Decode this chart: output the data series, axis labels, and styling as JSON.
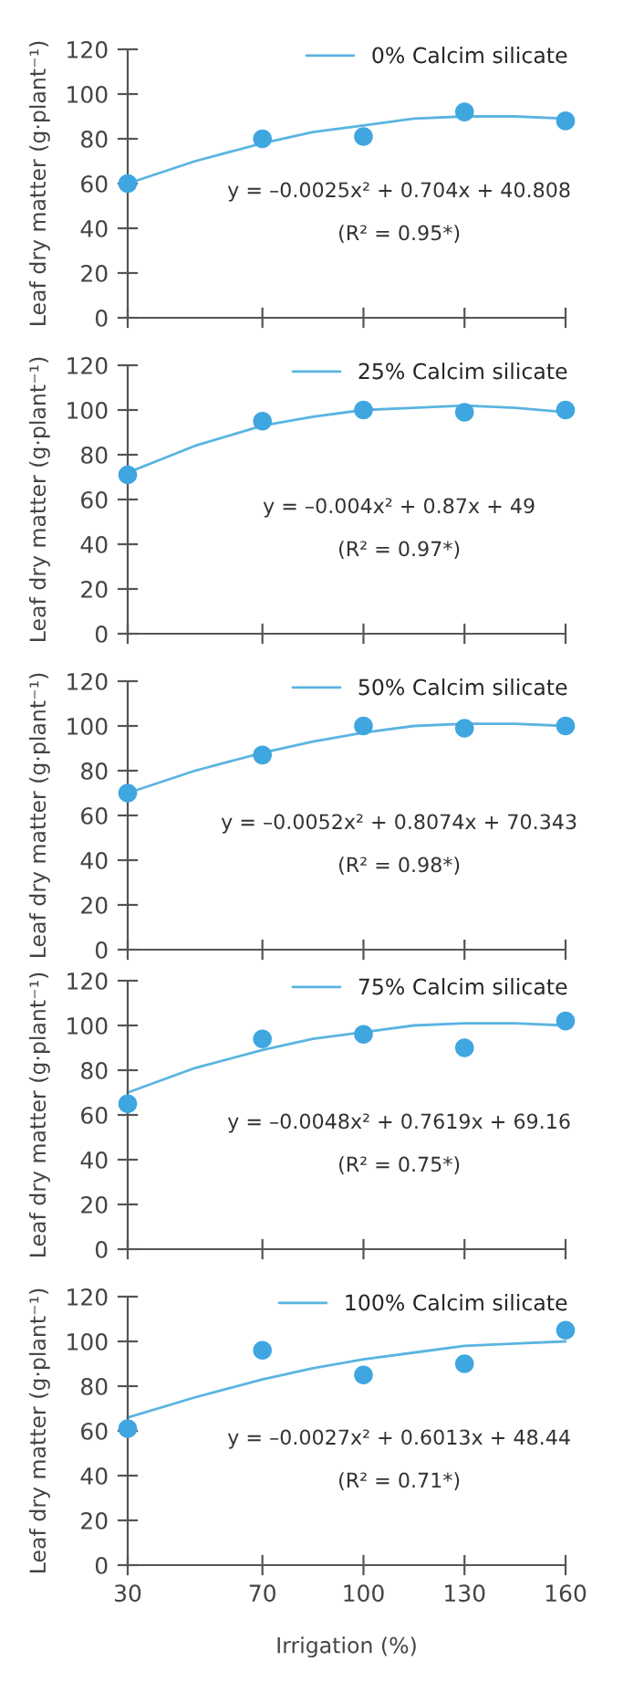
{
  "chart_data": [
    {
      "type": "scatter",
      "x": [
        30,
        70,
        100,
        130,
        160
      ],
      "xlim": [
        30,
        160
      ],
      "xticks": [
        30,
        70,
        100,
        130,
        160
      ],
      "ylim": [
        0,
        120
      ],
      "yticks": [
        0,
        20,
        40,
        60,
        80,
        100,
        120
      ],
      "ylabel": "Leaf dry matter (g·plant⁻¹)",
      "tick_labels": "y",
      "grid": false,
      "legend": "top right",
      "series": [
        {
          "color": "#3fa6e0",
          "marker": "circle",
          "values": [
            60,
            80,
            81,
            92,
            88
          ]
        },
        {
          "type": "line",
          "name": "0% Calcim silicate",
          "color": "#5ab4e0",
          "x": [
            30,
            50,
            70,
            85,
            100,
            115,
            130,
            145,
            160
          ],
          "values": [
            60,
            70,
            78,
            83,
            86,
            89,
            90,
            90,
            89
          ]
        }
      ],
      "annotations": [
        "y = –0.0025x² + 0.704x + 40.808",
        "(R² = 0.95*)"
      ]
    },
    {
      "type": "scatter",
      "x": [
        30,
        70,
        100,
        130,
        160
      ],
      "xlim": [
        30,
        160
      ],
      "xticks": [
        30,
        70,
        100,
        130,
        160
      ],
      "ylim": [
        0,
        120
      ],
      "yticks": [
        0,
        20,
        40,
        60,
        80,
        100,
        120
      ],
      "ylabel": "Leaf dry matter (g·plant⁻¹)",
      "tick_labels": "y",
      "grid": false,
      "legend": "top right",
      "series": [
        {
          "color": "#3fa6e0",
          "marker": "circle",
          "values": [
            71,
            95,
            100,
            99,
            100
          ]
        },
        {
          "type": "line",
          "name": "25% Calcim silicate",
          "color": "#5ab4e0",
          "x": [
            30,
            50,
            70,
            85,
            100,
            115,
            130,
            145,
            160
          ],
          "values": [
            72,
            84,
            93,
            97,
            100,
            101,
            102,
            101,
            99
          ]
        }
      ],
      "annotations": [
        "y = –0.004x² + 0.87x + 49",
        "(R² = 0.97*)"
      ]
    },
    {
      "type": "scatter",
      "x": [
        30,
        70,
        100,
        130,
        160
      ],
      "xlim": [
        30,
        160
      ],
      "xticks": [
        30,
        70,
        100,
        130,
        160
      ],
      "ylim": [
        0,
        120
      ],
      "yticks": [
        0,
        20,
        40,
        60,
        80,
        100,
        120
      ],
      "ylabel": "Leaf dry matter (g·plant⁻¹)",
      "tick_labels": "y",
      "grid": false,
      "legend": "top right",
      "series": [
        {
          "color": "#3fa6e0",
          "marker": "circle",
          "values": [
            70,
            87,
            100,
            99,
            100
          ]
        },
        {
          "type": "line",
          "name": "50% Calcim silicate",
          "color": "#5ab4e0",
          "x": [
            30,
            50,
            70,
            85,
            100,
            115,
            130,
            145,
            160
          ],
          "values": [
            70,
            80,
            88,
            93,
            97,
            100,
            101,
            101,
            100
          ]
        }
      ],
      "annotations": [
        "y = –0.0052x² + 0.8074x + 70.343",
        "(R² = 0.98*)"
      ]
    },
    {
      "type": "scatter",
      "x": [
        30,
        70,
        100,
        130,
        160
      ],
      "xlim": [
        30,
        160
      ],
      "xticks": [
        30,
        70,
        100,
        130,
        160
      ],
      "ylim": [
        0,
        120
      ],
      "yticks": [
        0,
        20,
        40,
        60,
        80,
        100,
        120
      ],
      "ylabel": "Leaf dry matter (g·plant⁻¹)",
      "tick_labels": "y",
      "grid": false,
      "legend": "top right",
      "series": [
        {
          "color": "#3fa6e0",
          "marker": "circle",
          "values": [
            65,
            94,
            96,
            90,
            102
          ]
        },
        {
          "type": "line",
          "name": "75% Calcim silicate",
          "color": "#5ab4e0",
          "x": [
            30,
            50,
            70,
            85,
            100,
            115,
            130,
            145,
            160
          ],
          "values": [
            70,
            81,
            89,
            94,
            97,
            100,
            101,
            101,
            100
          ]
        }
      ],
      "annotations": [
        "y = –0.0048x² + 0.7619x + 69.16",
        "(R² = 0.75*)"
      ]
    },
    {
      "type": "scatter",
      "x": [
        30,
        70,
        100,
        130,
        160
      ],
      "xlim": [
        30,
        160
      ],
      "xticks": [
        30,
        70,
        100,
        130,
        160
      ],
      "ylim": [
        0,
        120
      ],
      "yticks": [
        0,
        20,
        40,
        60,
        80,
        100,
        120
      ],
      "ylabel": "Leaf dry matter (g·plant⁻¹)",
      "xlabel": "Irrigation (%)",
      "grid": false,
      "legend": "top right",
      "series": [
        {
          "color": "#3fa6e0",
          "marker": "circle",
          "values": [
            61,
            96,
            85,
            90,
            105
          ]
        },
        {
          "type": "line",
          "name": "100% Calcim silicate",
          "color": "#5ab4e0",
          "x": [
            30,
            50,
            70,
            85,
            100,
            115,
            130,
            145,
            160
          ],
          "values": [
            66,
            75,
            83,
            88,
            92,
            95,
            98,
            99,
            100
          ]
        }
      ],
      "annotations": [
        "y = –0.0027x² + 0.6013x + 48.44",
        "(R² = 0.71*)"
      ]
    }
  ]
}
